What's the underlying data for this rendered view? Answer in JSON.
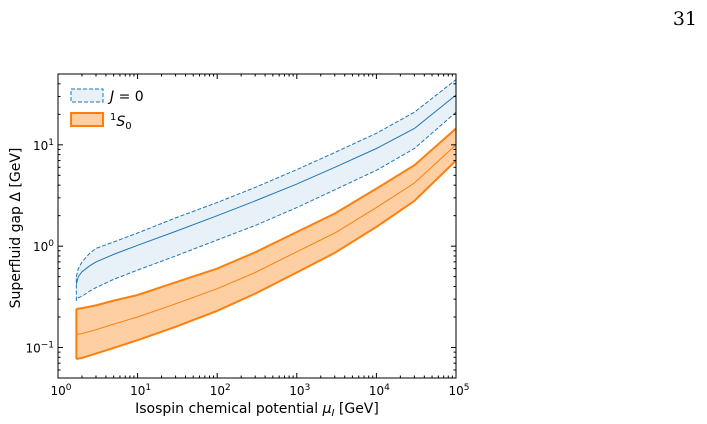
{
  "page": {
    "number": "31"
  },
  "chart_data": {
    "type": "area",
    "title": "",
    "xlabel": "Isospin chemical potential μ_I [GeV]",
    "ylabel": "Superfluid gap Δ [GeV]",
    "xscale": "log",
    "yscale": "log",
    "xlim": [
      1,
      100000
    ],
    "ylim": [
      0.05,
      50
    ],
    "legend_position": "top-left",
    "x_ticks": [
      {
        "value": 1,
        "base": "10",
        "exp": "0"
      },
      {
        "value": 10,
        "base": "10",
        "exp": "1"
      },
      {
        "value": 100,
        "base": "10",
        "exp": "2"
      },
      {
        "value": 1000,
        "base": "10",
        "exp": "3"
      },
      {
        "value": 10000,
        "base": "10",
        "exp": "4"
      },
      {
        "value": 100000,
        "base": "10",
        "exp": "5"
      }
    ],
    "y_ticks": [
      {
        "value": 0.1,
        "base": "10",
        "exp": "−1"
      },
      {
        "value": 1,
        "base": "10",
        "exp": "0"
      },
      {
        "value": 10,
        "base": "10",
        "exp": "1"
      }
    ],
    "series": [
      {
        "name": "J = 0",
        "color": "#1f77b4",
        "fill": "#e8f0f8",
        "style": "dashed",
        "x": [
          1.7,
          1.8,
          2,
          2.5,
          3,
          5,
          10,
          30,
          100,
          300,
          1000,
          3000,
          10000,
          30000,
          100000
        ],
        "center": [
          0.42,
          0.5,
          0.56,
          0.64,
          0.7,
          0.83,
          1.02,
          1.4,
          2.0,
          2.8,
          4.1,
          6.0,
          9.2,
          14.5,
          31
        ],
        "lower": [
          0.29,
          0.31,
          0.32,
          0.36,
          0.39,
          0.47,
          0.58,
          0.8,
          1.15,
          1.6,
          2.4,
          3.6,
          5.6,
          9.2,
          21
        ],
        "upper": [
          0.5,
          0.6,
          0.7,
          0.85,
          0.95,
          1.1,
          1.35,
          1.9,
          2.7,
          3.8,
          5.7,
          8.4,
          13,
          21,
          44
        ]
      },
      {
        "name": "1S0",
        "color": "#ff7f0e",
        "fill": "#fdcfa3",
        "style": "solid",
        "x": [
          1.7,
          2,
          3,
          5,
          10,
          30,
          100,
          300,
          1000,
          3000,
          10000,
          30000,
          100000
        ],
        "center": [
          0.135,
          0.137,
          0.15,
          0.17,
          0.2,
          0.27,
          0.38,
          0.55,
          0.88,
          1.35,
          2.4,
          4.2,
          10
        ],
        "lower": [
          0.077,
          0.079,
          0.087,
          0.099,
          0.118,
          0.16,
          0.23,
          0.34,
          0.55,
          0.86,
          1.55,
          2.8,
          7
        ],
        "upper": [
          0.24,
          0.245,
          0.26,
          0.29,
          0.33,
          0.44,
          0.6,
          0.87,
          1.38,
          2.1,
          3.7,
          6.3,
          14.5
        ]
      }
    ],
    "legend": [
      {
        "label_main": "J",
        "label_suffix": " = 0",
        "series": 0
      },
      {
        "label_sup": "1",
        "label_main": "S",
        "label_sub": "0",
        "series": 1
      }
    ]
  }
}
